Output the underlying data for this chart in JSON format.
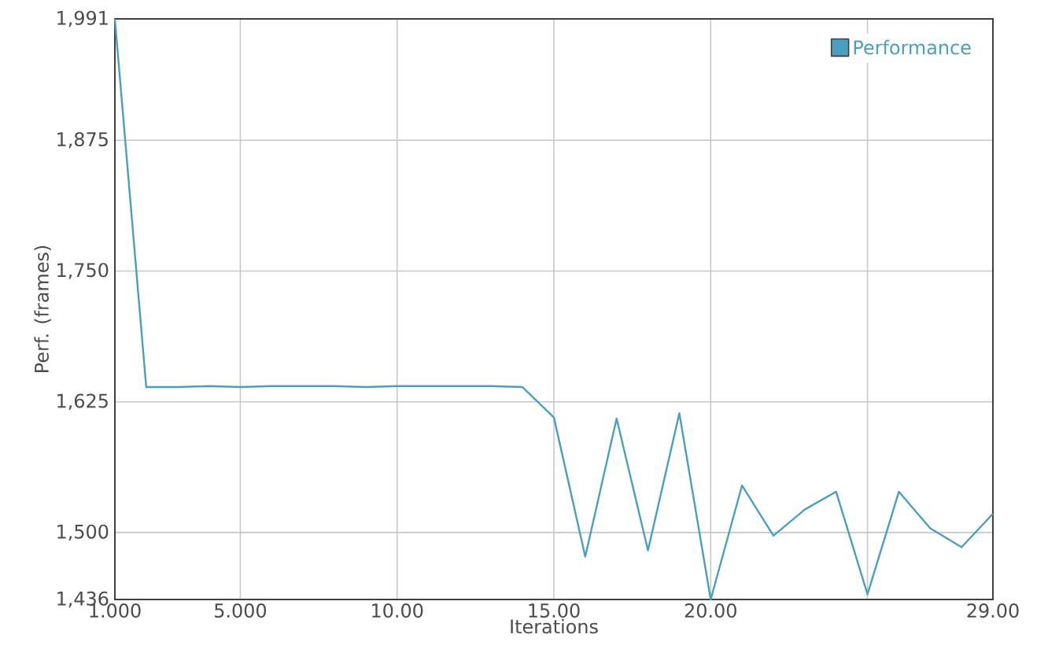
{
  "chart_data": {
    "type": "line",
    "xlabel": "Iterations",
    "ylabel": "Perf. (frames)",
    "x": [
      1,
      2,
      3,
      4,
      5,
      6,
      7,
      8,
      9,
      10,
      11,
      12,
      13,
      14,
      15,
      16,
      17,
      18,
      19,
      20,
      21,
      22,
      23,
      24,
      25,
      26,
      27,
      28,
      29
    ],
    "series": [
      {
        "name": "Performance",
        "color": "#4a9fc0",
        "values": [
          1991,
          1639,
          1639,
          1640,
          1639,
          1640,
          1640,
          1640,
          1639,
          1640,
          1640,
          1640,
          1640,
          1639,
          1610,
          1477,
          1609,
          1483,
          1614,
          1436,
          1545,
          1497,
          1522,
          1539,
          1441,
          1539,
          1504,
          1486,
          1518
        ]
      }
    ],
    "xlim": [
      1,
      29
    ],
    "xticks": [
      {
        "value": 1,
        "label": "1.000"
      },
      {
        "value": 5,
        "label": "5.000"
      },
      {
        "value": 10,
        "label": "10.00"
      },
      {
        "value": 15,
        "label": "15.00"
      },
      {
        "value": 20,
        "label": "20.00"
      },
      {
        "value": 25,
        "label": null
      },
      {
        "value": 29,
        "label": "29.00"
      }
    ],
    "ylim": [
      1436,
      1991
    ],
    "yticks": [
      {
        "value": 1436,
        "label": "1,436"
      },
      {
        "value": 1500,
        "label": "1,500"
      },
      {
        "value": 1625,
        "label": "1,625"
      },
      {
        "value": 1750,
        "label": "1,750"
      },
      {
        "value": 1875,
        "label": "1,875"
      },
      {
        "value": 1991,
        "label": "1,991"
      }
    ],
    "grid": true,
    "legend": "top right",
    "marker": "none",
    "line_style": "solid"
  }
}
